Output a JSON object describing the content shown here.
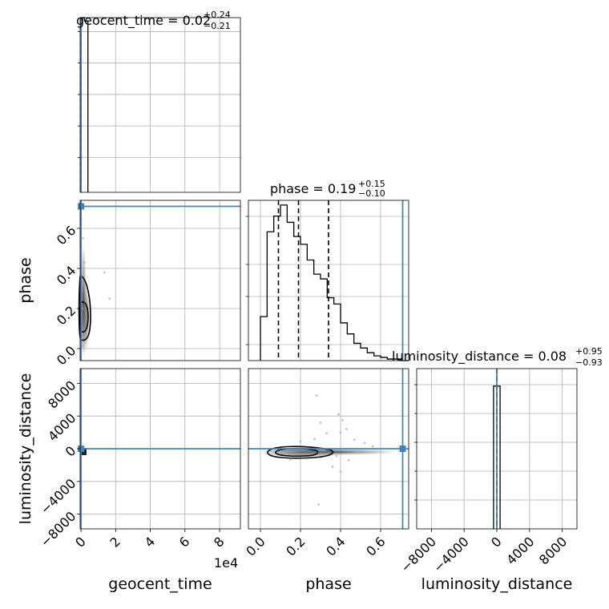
{
  "chart_data": {
    "type": "corner",
    "parameters": [
      "geocent_time",
      "phase",
      "luminosity_distance"
    ],
    "colors": {
      "truth": "#4682b4",
      "hist": "#000000",
      "grid": "#b0b0b0",
      "quantile": "#000000"
    },
    "truths": {
      "geocent_time": 0,
      "phase": 0.71,
      "luminosity_distance": 0
    },
    "diagonal": [
      {
        "parameter": "geocent_time",
        "title": {
          "main": "geocent_time = 0.02",
          "sup": "+0.24",
          "sub": "−0.21"
        },
        "xlim": [
          -500,
          92000
        ],
        "xticks": [
          0,
          2,
          4,
          6,
          8
        ],
        "x_offset_label": "1e4",
        "hist_bins": [
          0,
          2000,
          4000
        ],
        "hist_values": [
          1.0,
          0.98
        ],
        "quantiles": [
          -0.19,
          0.02,
          0.26
        ]
      },
      {
        "parameter": "phase",
        "title": {
          "main": "phase = 0.19",
          "sup": "+0.15",
          "sub": "−0.10"
        },
        "xlim": [
          -0.06,
          0.74
        ],
        "xticks": [
          "0.0",
          "0.2",
          "0.4",
          "0.6"
        ],
        "hist_bins": [
          0.0,
          0.0333,
          0.0667,
          0.1,
          0.1333,
          0.1667,
          0.2,
          0.2333,
          0.2667,
          0.3,
          0.3333,
          0.3667,
          0.4,
          0.4333,
          0.4667,
          0.5,
          0.5333,
          0.5667,
          0.6,
          0.6333,
          0.6667,
          0.7
        ],
        "hist_values": [
          0.28,
          0.82,
          0.92,
          0.99,
          0.88,
          0.79,
          0.74,
          0.64,
          0.55,
          0.52,
          0.4,
          0.36,
          0.24,
          0.17,
          0.11,
          0.08,
          0.05,
          0.03,
          0.02,
          0.01,
          0.01
        ],
        "quantiles": [
          0.09,
          0.19,
          0.34
        ]
      },
      {
        "parameter": "luminosity_distance",
        "title": {
          "main": "luminosity_distance = 0.08",
          "sup": "+0.95",
          "sub": "−0.93"
        },
        "xlim": [
          -9800,
          9800
        ],
        "xticks": [
          "−8000",
          "−4000",
          "0",
          "4000",
          "8000"
        ],
        "hist_bins": [
          -400,
          0,
          400
        ],
        "hist_values": [
          0.98,
          0.98
        ],
        "quantiles": [
          -0.85,
          0.08,
          1.03
        ]
      }
    ],
    "off_diagonal": [
      {
        "x": "geocent_time",
        "y": "phase",
        "xlim": [
          -500,
          92000
        ],
        "ylim": [
          -0.06,
          0.74
        ],
        "yticks": [
          "0.0",
          "0.2",
          "0.4",
          "0.6"
        ],
        "contour_levels": [
          0.39,
          0.86
        ],
        "scatter": [
          [
            900,
            0.01
          ],
          [
            500,
            0.07
          ],
          [
            800,
            0.2
          ],
          [
            13500,
            0.38
          ],
          [
            16500,
            0.25
          ],
          [
            100,
            0.65
          ],
          [
            2000,
            0.43
          ],
          [
            1200,
            0.55
          ]
        ]
      },
      {
        "x": "geocent_time",
        "y": "luminosity_distance",
        "xlim": [
          -500,
          92000
        ],
        "ylim": [
          -9800,
          9800
        ],
        "yticks": [
          "−8000",
          "−4000",
          "0",
          "4000",
          "8000"
        ]
      },
      {
        "x": "phase",
        "y": "luminosity_distance",
        "xlim": [
          -0.06,
          0.74
        ],
        "ylim": [
          -9800,
          9800
        ],
        "scatter": [
          [
            0.28,
            6500
          ],
          [
            0.39,
            4200
          ],
          [
            0.41,
            3500
          ],
          [
            0.3,
            3200
          ],
          [
            0.27,
            1200
          ],
          [
            0.2,
            900
          ],
          [
            0.4,
            2000
          ],
          [
            0.43,
            2400
          ],
          [
            0.52,
            700
          ],
          [
            0.47,
            1100
          ],
          [
            0.38,
            -900
          ],
          [
            0.44,
            -1400
          ],
          [
            0.29,
            -6800
          ],
          [
            0.36,
            -2200
          ],
          [
            0.4,
            -2800
          ],
          [
            0.33,
            1900
          ],
          [
            0.15,
            -1300
          ],
          [
            0.48,
            -400
          ],
          [
            0.56,
            300
          ]
        ]
      }
    ],
    "axis_labels": {
      "x": [
        "geocent_time",
        "phase",
        "luminosity_distance"
      ],
      "y": [
        "phase",
        "luminosity_distance"
      ]
    }
  }
}
